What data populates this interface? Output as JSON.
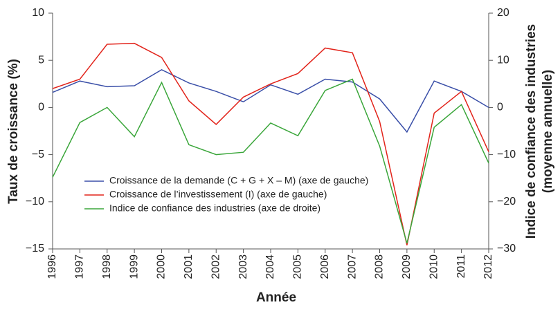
{
  "chart_data": {
    "type": "line",
    "xlabel": "Année",
    "ylabel": "Taux de croissance (%)",
    "y2label": [
      "Indice de confiance des industries",
      "(moyenne annuelle)"
    ],
    "categories": [
      "1996",
      "1997",
      "1998",
      "1999",
      "2000",
      "2001",
      "2002",
      "2003",
      "2004",
      "2005",
      "2006",
      "2007",
      "2008",
      "2009",
      "2010",
      "2011",
      "2012"
    ],
    "ylim": [
      -15,
      10
    ],
    "yticks": [
      {
        "value": -15,
        "label": "−15"
      },
      {
        "value": -10,
        "label": "−10"
      },
      {
        "value": -5,
        "label": "−5"
      },
      0,
      5,
      10
    ],
    "y2lim": [
      -30,
      20
    ],
    "y2ticks": [
      {
        "value": -30,
        "label": "−30"
      },
      {
        "value": -20,
        "label": "−20"
      },
      {
        "value": -10,
        "label": "−10"
      },
      0,
      10,
      20
    ],
    "series": [
      {
        "name": "Croissance de la demande (C + G + X – M) (axe de gauche)",
        "color": "#3a4fa8",
        "values": [
          1.6,
          2.8,
          2.2,
          2.3,
          4.0,
          2.6,
          1.7,
          0.6,
          2.4,
          1.4,
          3.0,
          2.7,
          0.9,
          -2.6,
          2.8,
          1.7,
          0.0
        ]
      },
      {
        "name": "Croissance de l’investissement (I) (axe de gauche)",
        "color": "#e2231a",
        "values": [
          2.0,
          3.0,
          6.7,
          6.8,
          5.3,
          0.7,
          -1.8,
          1.1,
          2.5,
          3.6,
          6.3,
          5.8,
          -1.5,
          -14.6,
          -0.6,
          1.7,
          -4.7
        ]
      },
      {
        "name": "Indice de confiance des industries (axe de droite)",
        "color": "#3aa63a",
        "axis": "y2",
        "values": [
          -14.8,
          -3.2,
          0.0,
          -6.2,
          5.3,
          -7.9,
          -10.0,
          -9.5,
          -3.3,
          -6.0,
          3.6,
          6.0,
          -8.2,
          -28.8,
          -4.2,
          0.6,
          -11.8
        ]
      }
    ]
  }
}
